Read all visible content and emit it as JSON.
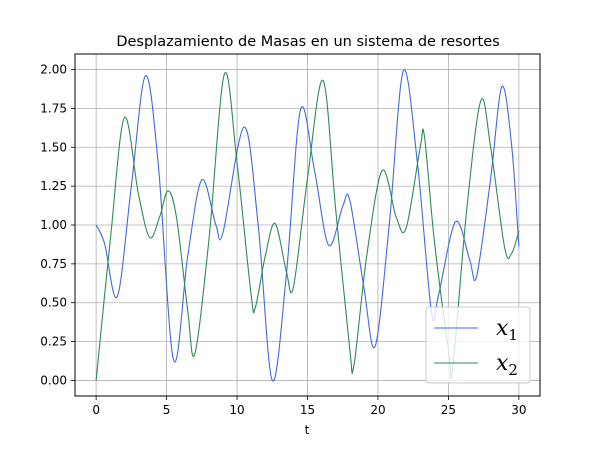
{
  "chart_data": {
    "type": "line",
    "title": "Desplazamiento de Masas en un sistema de resortes",
    "xlabel": "t",
    "ylabel": "",
    "xlim": [
      -1.5,
      31.5
    ],
    "ylim": [
      -0.1,
      2.1
    ],
    "xticks": [
      0,
      5,
      10,
      15,
      20,
      25,
      30
    ],
    "yticks": [
      0.0,
      0.25,
      0.5,
      0.75,
      1.0,
      1.25,
      1.5,
      1.75,
      2.0
    ],
    "xtick_labels": [
      "0",
      "5",
      "10",
      "15",
      "20",
      "25",
      "30"
    ],
    "ytick_labels": [
      "0.00",
      "0.25",
      "0.50",
      "0.75",
      "1.00",
      "1.25",
      "1.50",
      "1.75",
      "2.00"
    ],
    "grid": true,
    "legend_position": "bottom-right",
    "series": [
      {
        "name": "x1",
        "legend_main": "x",
        "legend_sub": "1",
        "color": "#4169e1",
        "points": [
          [
            0.0,
            1.0
          ],
          [
            0.6,
            0.88
          ],
          [
            1.5,
            0.54
          ],
          [
            2.5,
            1.25
          ],
          [
            3.5,
            1.96
          ],
          [
            4.4,
            1.4
          ],
          [
            5.5,
            0.13
          ],
          [
            6.5,
            0.8
          ],
          [
            7.5,
            1.29
          ],
          [
            8.5,
            1.0
          ],
          [
            9.0,
            0.95
          ],
          [
            10.5,
            1.63
          ],
          [
            11.5,
            1.0
          ],
          [
            12.5,
            0.0
          ],
          [
            13.5,
            0.68
          ],
          [
            14.5,
            1.74
          ],
          [
            15.5,
            1.35
          ],
          [
            16.5,
            0.87
          ],
          [
            17.5,
            1.12
          ],
          [
            18.0,
            1.16
          ],
          [
            19.0,
            0.6
          ],
          [
            19.8,
            0.22
          ],
          [
            20.8,
            1.0
          ],
          [
            21.8,
            1.99
          ],
          [
            22.8,
            1.4
          ],
          [
            23.8,
            0.44
          ],
          [
            24.3,
            0.55
          ],
          [
            25.5,
            1.02
          ],
          [
            26.5,
            0.78
          ],
          [
            27.0,
            0.67
          ],
          [
            28.0,
            1.3
          ],
          [
            28.8,
            1.89
          ],
          [
            29.5,
            1.5
          ],
          [
            30.0,
            0.86
          ]
        ]
      },
      {
        "name": "x2",
        "legend_main": "x",
        "legend_sub": "2",
        "color": "#2e8b57",
        "points": [
          [
            0.0,
            0.0
          ],
          [
            1.0,
            0.9
          ],
          [
            2.0,
            1.69
          ],
          [
            3.0,
            1.2
          ],
          [
            3.8,
            0.92
          ],
          [
            4.5,
            1.05
          ],
          [
            5.1,
            1.22
          ],
          [
            5.7,
            1.05
          ],
          [
            6.5,
            0.45
          ],
          [
            7.0,
            0.17
          ],
          [
            8.0,
            0.9
          ],
          [
            9.1,
            1.97
          ],
          [
            10.0,
            1.4
          ],
          [
            11.0,
            0.55
          ],
          [
            11.3,
            0.47
          ],
          [
            12.0,
            0.8
          ],
          [
            12.7,
            1.01
          ],
          [
            13.5,
            0.7
          ],
          [
            14.0,
            0.6
          ],
          [
            15.0,
            1.3
          ],
          [
            16.1,
            1.93
          ],
          [
            17.0,
            1.1
          ],
          [
            18.0,
            0.2
          ],
          [
            18.3,
            0.1
          ],
          [
            19.2,
            0.8
          ],
          [
            20.3,
            1.35
          ],
          [
            21.3,
            1.05
          ],
          [
            22.0,
            0.98
          ],
          [
            23.0,
            1.5
          ],
          [
            23.3,
            1.57
          ],
          [
            24.0,
            0.9
          ],
          [
            25.0,
            0.2
          ],
          [
            25.3,
            0.08
          ],
          [
            26.3,
            1.1
          ],
          [
            27.3,
            1.8
          ],
          [
            28.0,
            1.5
          ],
          [
            29.0,
            0.85
          ],
          [
            29.5,
            0.82
          ],
          [
            30.0,
            0.96
          ]
        ]
      }
    ]
  }
}
